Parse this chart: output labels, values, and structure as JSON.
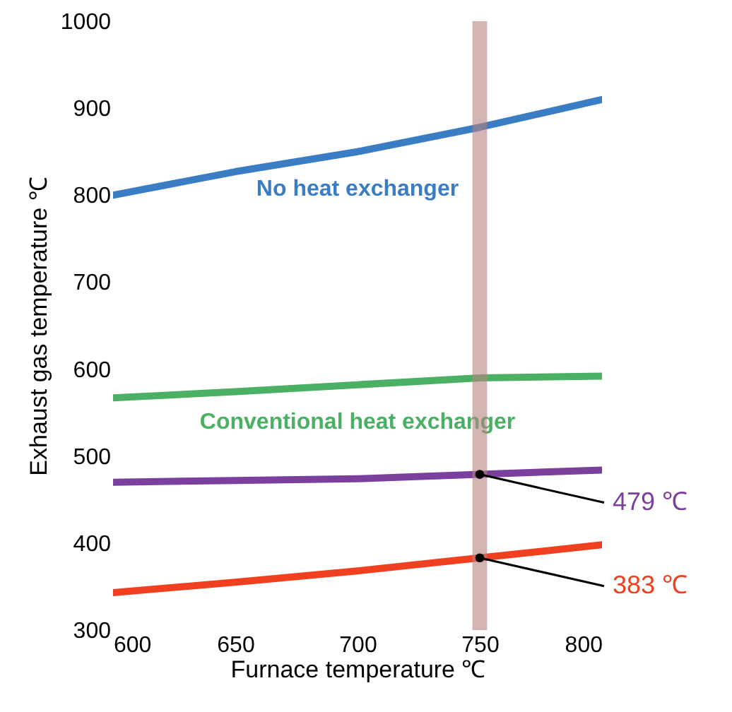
{
  "chart_data": {
    "type": "line",
    "xlabel": "Furnace temperature ℃",
    "ylabel": "Exhaust gas temperature ℃",
    "x": [
      600,
      650,
      700,
      750,
      800
    ],
    "series": [
      {
        "name": "No heat exchanger",
        "color": "#3a7dc4",
        "values": [
          800,
          827,
          850,
          878,
          910
        ]
      },
      {
        "name": "Conventional heat exchanger",
        "color": "#4cb064",
        "values": [
          567,
          574,
          582,
          590,
          592
        ]
      },
      {
        "color": "#7b3f9e",
        "values": [
          470,
          472,
          474,
          479,
          484
        ]
      },
      {
        "color": "#f0401f",
        "values": [
          343,
          355,
          368,
          383,
          398
        ]
      }
    ],
    "xlim": [
      600,
      800
    ],
    "xticks": [
      600,
      650,
      700,
      750,
      800
    ],
    "ylim": [
      300,
      1000
    ],
    "yticks": [
      300,
      400,
      500,
      600,
      700,
      800,
      900,
      1000
    ],
    "bands": [
      {
        "axis": "x",
        "from": 747,
        "to": 753,
        "color": "#b5827e"
      }
    ],
    "annotations": [
      {
        "text": "479 ℃",
        "x": 750,
        "y": 479
      },
      {
        "text": "383 ℃",
        "x": 750,
        "y": 383
      }
    ],
    "grid": false
  }
}
